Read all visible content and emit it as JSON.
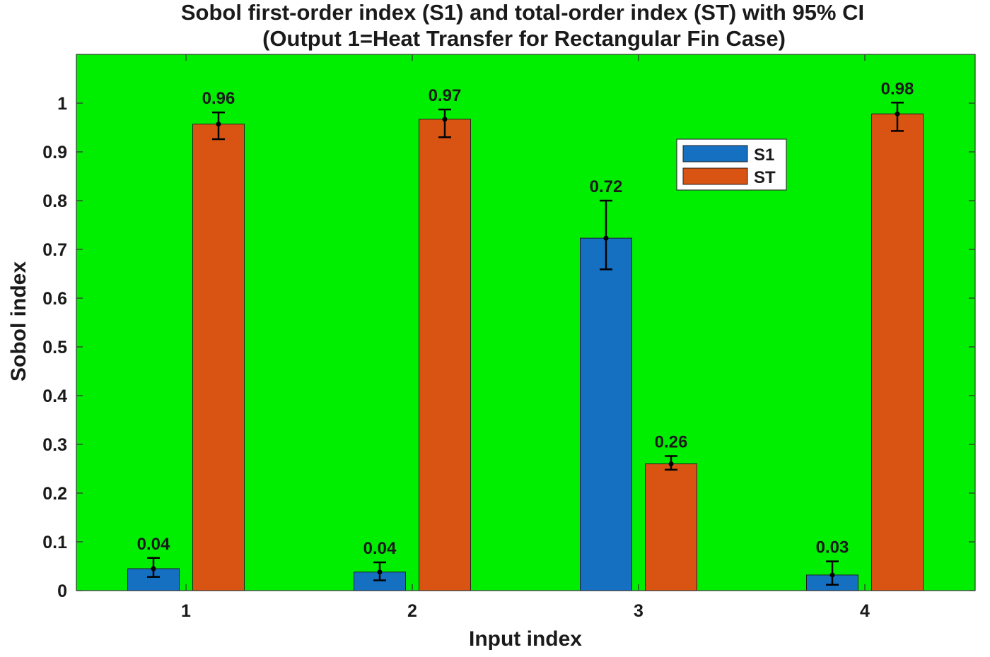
{
  "chart_data": {
    "type": "bar",
    "title_line1": "Sobol first-order index (S1) and total-order index (ST) with 95% CI",
    "title_line2": "(Output 1=Heat Transfer for Rectangular Fin Case)",
    "xlabel": "Input index",
    "ylabel": "Sobol index",
    "categories": [
      "1",
      "2",
      "3",
      "4"
    ],
    "ylim": [
      0,
      1.1
    ],
    "yticks": [
      "0",
      "0.1",
      "0.2",
      "0.3",
      "0.4",
      "0.5",
      "0.6",
      "0.7",
      "0.8",
      "0.9",
      "1"
    ],
    "grid": false,
    "legend_position": "top-right",
    "background_color": "#00ee00",
    "series": [
      {
        "name": "S1",
        "color": "#1570c2",
        "values": [
          0.045,
          0.038,
          0.723,
          0.032
        ],
        "ci_low": [
          0.028,
          0.021,
          0.659,
          0.012
        ],
        "ci_high": [
          0.067,
          0.058,
          0.8,
          0.06
        ],
        "labels": [
          "0.04",
          "0.04",
          "0.72",
          "0.03"
        ]
      },
      {
        "name": "ST",
        "color": "#d95413",
        "values": [
          0.957,
          0.967,
          0.26,
          0.978
        ],
        "ci_low": [
          0.926,
          0.93,
          0.248,
          0.943
        ],
        "ci_high": [
          0.981,
          0.987,
          0.276,
          1.001
        ],
        "labels": [
          "0.96",
          "0.97",
          "0.26",
          "0.98"
        ]
      }
    ]
  }
}
